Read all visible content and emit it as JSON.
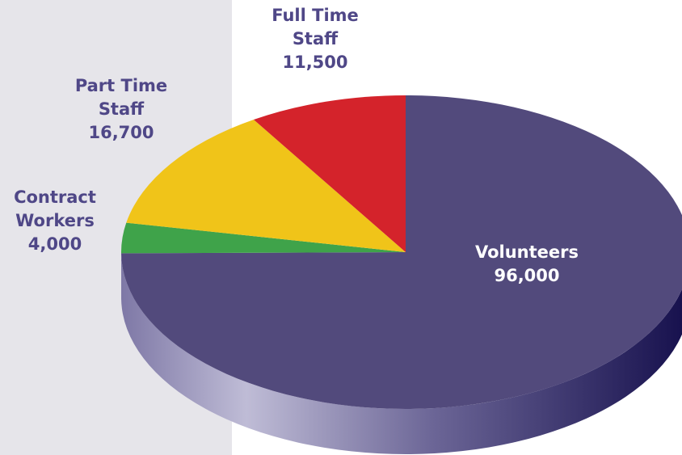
{
  "chart_data": {
    "type": "pie3d",
    "categories": [
      "Volunteers",
      "Contract Workers",
      "Part Time Staff",
      "Full Time Staff"
    ],
    "values": [
      96000,
      4000,
      16700,
      11500
    ],
    "value_labels": [
      "96,000",
      "4,000",
      "16,700",
      "11,500"
    ],
    "colors": [
      "#524a7c",
      "#3fa34a",
      "#f0c419",
      "#d4232b"
    ]
  }
}
